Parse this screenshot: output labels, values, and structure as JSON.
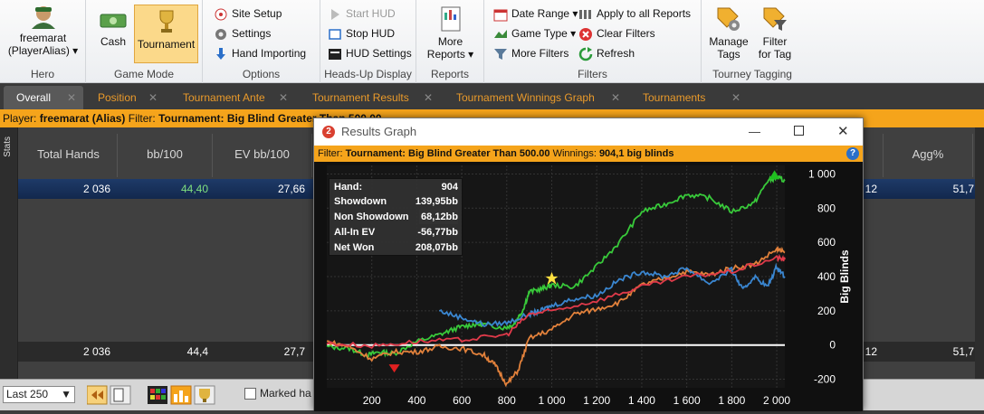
{
  "ribbon": {
    "hero": {
      "name": "freemarat",
      "alias": "(PlayerAlias)",
      "group": "Hero"
    },
    "game_mode": {
      "cash": "Cash",
      "tournament": "Tournament",
      "group": "Game Mode"
    },
    "options": {
      "site_setup": "Site Setup",
      "settings": "Settings",
      "hand_importing": "Hand Importing",
      "group": "Options"
    },
    "hud": {
      "start": "Start HUD",
      "stop": "Stop HUD",
      "settings": "HUD Settings",
      "group": "Heads-Up Display"
    },
    "reports": {
      "more": "More",
      "more2": "Reports",
      "group": "Reports"
    },
    "filters": {
      "date_range": "Date Range",
      "game_type": "Game Type",
      "more_filters": "More Filters",
      "apply_all": "Apply to all Reports",
      "clear": "Clear Filters",
      "refresh": "Refresh",
      "group": "Filters"
    },
    "tagging": {
      "manage1": "Manage",
      "manage2": "Tags",
      "filter1": "Filter",
      "filter2": "for Tag",
      "group": "Tourney Tagging"
    }
  },
  "tabs": [
    "Overall",
    "Position",
    "Tournament Ante",
    "Tournament Results",
    "Tournament Winnings Graph",
    "Tournaments"
  ],
  "filterbar": {
    "player_label": "Player:",
    "player": "freemarat (Alias)",
    "filter_label": "Filter:",
    "filter": "Tournament: Big Blind Greater Than 500.00"
  },
  "stats_label": "Stats",
  "table": {
    "headers": [
      "Total Hands",
      "bb/100",
      "EV bb/100",
      "Agg%"
    ],
    "row1": [
      "2 036",
      "44,40",
      "27,66",
      "12",
      "51,7"
    ],
    "row2": [
      "2 036",
      "44,4",
      "27,7",
      "12",
      "51,7"
    ]
  },
  "bottom": {
    "last": "Last 250",
    "marked": "Marked ha"
  },
  "window": {
    "title": "Results Graph",
    "filter_label": "Filter:",
    "filter": "Tournament: Big Blind Greater Than 500.00",
    "winnings_label": "Winnings:",
    "winnings": "904,1 big blinds",
    "stats": [
      {
        "k": "Hand:",
        "v": "904"
      },
      {
        "k": "Showdown",
        "v": "139,95bb"
      },
      {
        "k": "Non Showdown",
        "v": "68,12bb"
      },
      {
        "k": "All-In EV",
        "v": "-56,77bb"
      },
      {
        "k": "Net Won",
        "v": "208,07bb"
      }
    ]
  },
  "chart_data": {
    "type": "line",
    "ylabel": "Big Blinds",
    "x_ticks": [
      "200",
      "400",
      "600",
      "800",
      "1 000",
      "1 200",
      "1 400",
      "1 600",
      "1 800",
      "2 000"
    ],
    "y_ticks": [
      "1 000",
      "800",
      "600",
      "400",
      "200",
      "0",
      "-200"
    ],
    "xlim": [
      0,
      2036
    ],
    "ylim": [
      -250,
      1050
    ],
    "series": [
      {
        "color": "#38c93a",
        "x": [
          0,
          100,
          180,
          230,
          300,
          400,
          500,
          580,
          650,
          700,
          790,
          830,
          870,
          900,
          960,
          1000,
          1100,
          1200,
          1300,
          1400,
          1500,
          1600,
          1700,
          1800,
          1900,
          1960,
          2000,
          2036
        ],
        "y": [
          -10,
          -20,
          -60,
          -40,
          -50,
          20,
          60,
          100,
          120,
          120,
          100,
          120,
          200,
          310,
          330,
          350,
          340,
          460,
          600,
          780,
          820,
          880,
          860,
          780,
          830,
          960,
          980,
          960
        ]
      },
      {
        "color": "#e2813b",
        "x": [
          0,
          100,
          200,
          300,
          400,
          500,
          600,
          700,
          750,
          800,
          850,
          900,
          1000,
          1100,
          1200,
          1300,
          1400,
          1500,
          1600,
          1700,
          1800,
          1900,
          2000,
          2036
        ],
        "y": [
          20,
          -10,
          -80,
          -40,
          -40,
          -10,
          -20,
          -60,
          -120,
          -230,
          -150,
          40,
          90,
          180,
          210,
          250,
          350,
          390,
          430,
          410,
          450,
          470,
          560,
          540
        ]
      },
      {
        "color": "#3a86d0",
        "x": [
          500,
          600,
          700,
          800,
          900,
          950,
          1000,
          1100,
          1200,
          1300,
          1400,
          1500,
          1600,
          1700,
          1800,
          1850,
          1900,
          1960,
          2000,
          2036
        ],
        "y": [
          200,
          160,
          120,
          130,
          180,
          200,
          230,
          270,
          290,
          380,
          430,
          400,
          450,
          360,
          440,
          320,
          400,
          340,
          460,
          400
        ]
      },
      {
        "color": "#e03a4a",
        "x": [
          0,
          200,
          400,
          600,
          800,
          900,
          1000,
          1200,
          1400,
          1600,
          1800,
          2000,
          2036
        ],
        "y": [
          10,
          -5,
          20,
          30,
          60,
          180,
          200,
          260,
          340,
          400,
          430,
          510,
          500
        ]
      }
    ]
  }
}
